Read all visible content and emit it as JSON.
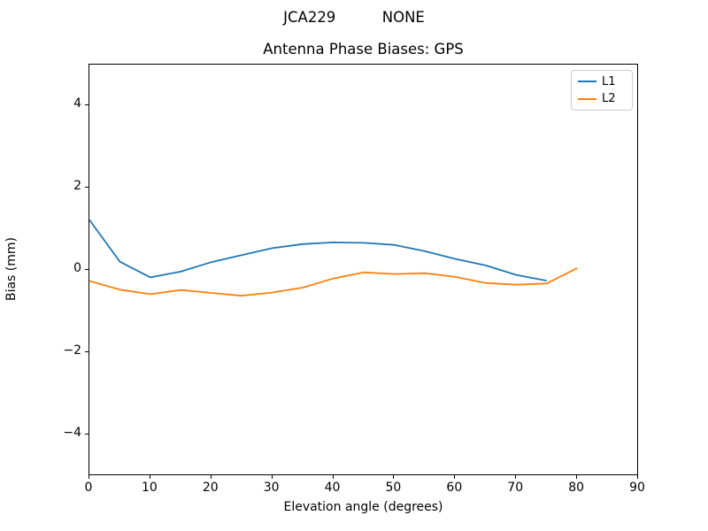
{
  "figure": {
    "suptitle": "JCA229          NONE",
    "background": "#ffffff"
  },
  "axes": {
    "title": "Antenna Phase Biases: GPS",
    "xlabel": "Elevation angle (degrees)",
    "ylabel": "Bias (mm)",
    "x_tick_values": [
      0,
      10,
      20,
      30,
      40,
      50,
      60,
      70,
      80,
      90
    ],
    "x_tick_labels": [
      "0",
      "10",
      "20",
      "30",
      "40",
      "50",
      "60",
      "70",
      "80",
      "90"
    ],
    "y_tick_values": [
      -4,
      -2,
      0,
      2,
      4
    ],
    "y_tick_labels": [
      "−4",
      "−2",
      "0",
      "2",
      "4"
    ],
    "spine_color": "#000000"
  },
  "legend": {
    "position": "upper right",
    "entries": [
      {
        "label": "L1",
        "color": "#1f77b4"
      },
      {
        "label": "L2",
        "color": "#ff7f0e"
      }
    ]
  },
  "chart_data": {
    "type": "line",
    "title": "Antenna Phase Biases: GPS",
    "suptitle": "JCA229          NONE",
    "xlabel": "Elevation angle (degrees)",
    "ylabel": "Bias (mm)",
    "xlim": [
      0,
      90
    ],
    "ylim": [
      -5,
      5
    ],
    "grid": false,
    "legend_position": "upper right",
    "series": [
      {
        "name": "L1",
        "color": "#1f77b4",
        "x": [
          0,
          5,
          10,
          15,
          20,
          25,
          30,
          35,
          40,
          45,
          50,
          55,
          60,
          65,
          70,
          75
        ],
        "y": [
          1.22,
          0.2,
          -0.18,
          -0.04,
          0.19,
          0.36,
          0.53,
          0.63,
          0.67,
          0.66,
          0.61,
          0.46,
          0.27,
          0.11,
          -0.12,
          -0.26
        ]
      },
      {
        "name": "L2",
        "color": "#ff7f0e",
        "x": [
          0,
          5,
          10,
          15,
          20,
          25,
          30,
          35,
          40,
          45,
          50,
          55,
          60,
          65,
          70,
          75,
          80
        ],
        "y": [
          -0.27,
          -0.48,
          -0.59,
          -0.49,
          -0.56,
          -0.63,
          -0.55,
          -0.43,
          -0.21,
          -0.06,
          -0.1,
          -0.08,
          -0.17,
          -0.32,
          -0.36,
          -0.33,
          0.04
        ]
      }
    ]
  }
}
